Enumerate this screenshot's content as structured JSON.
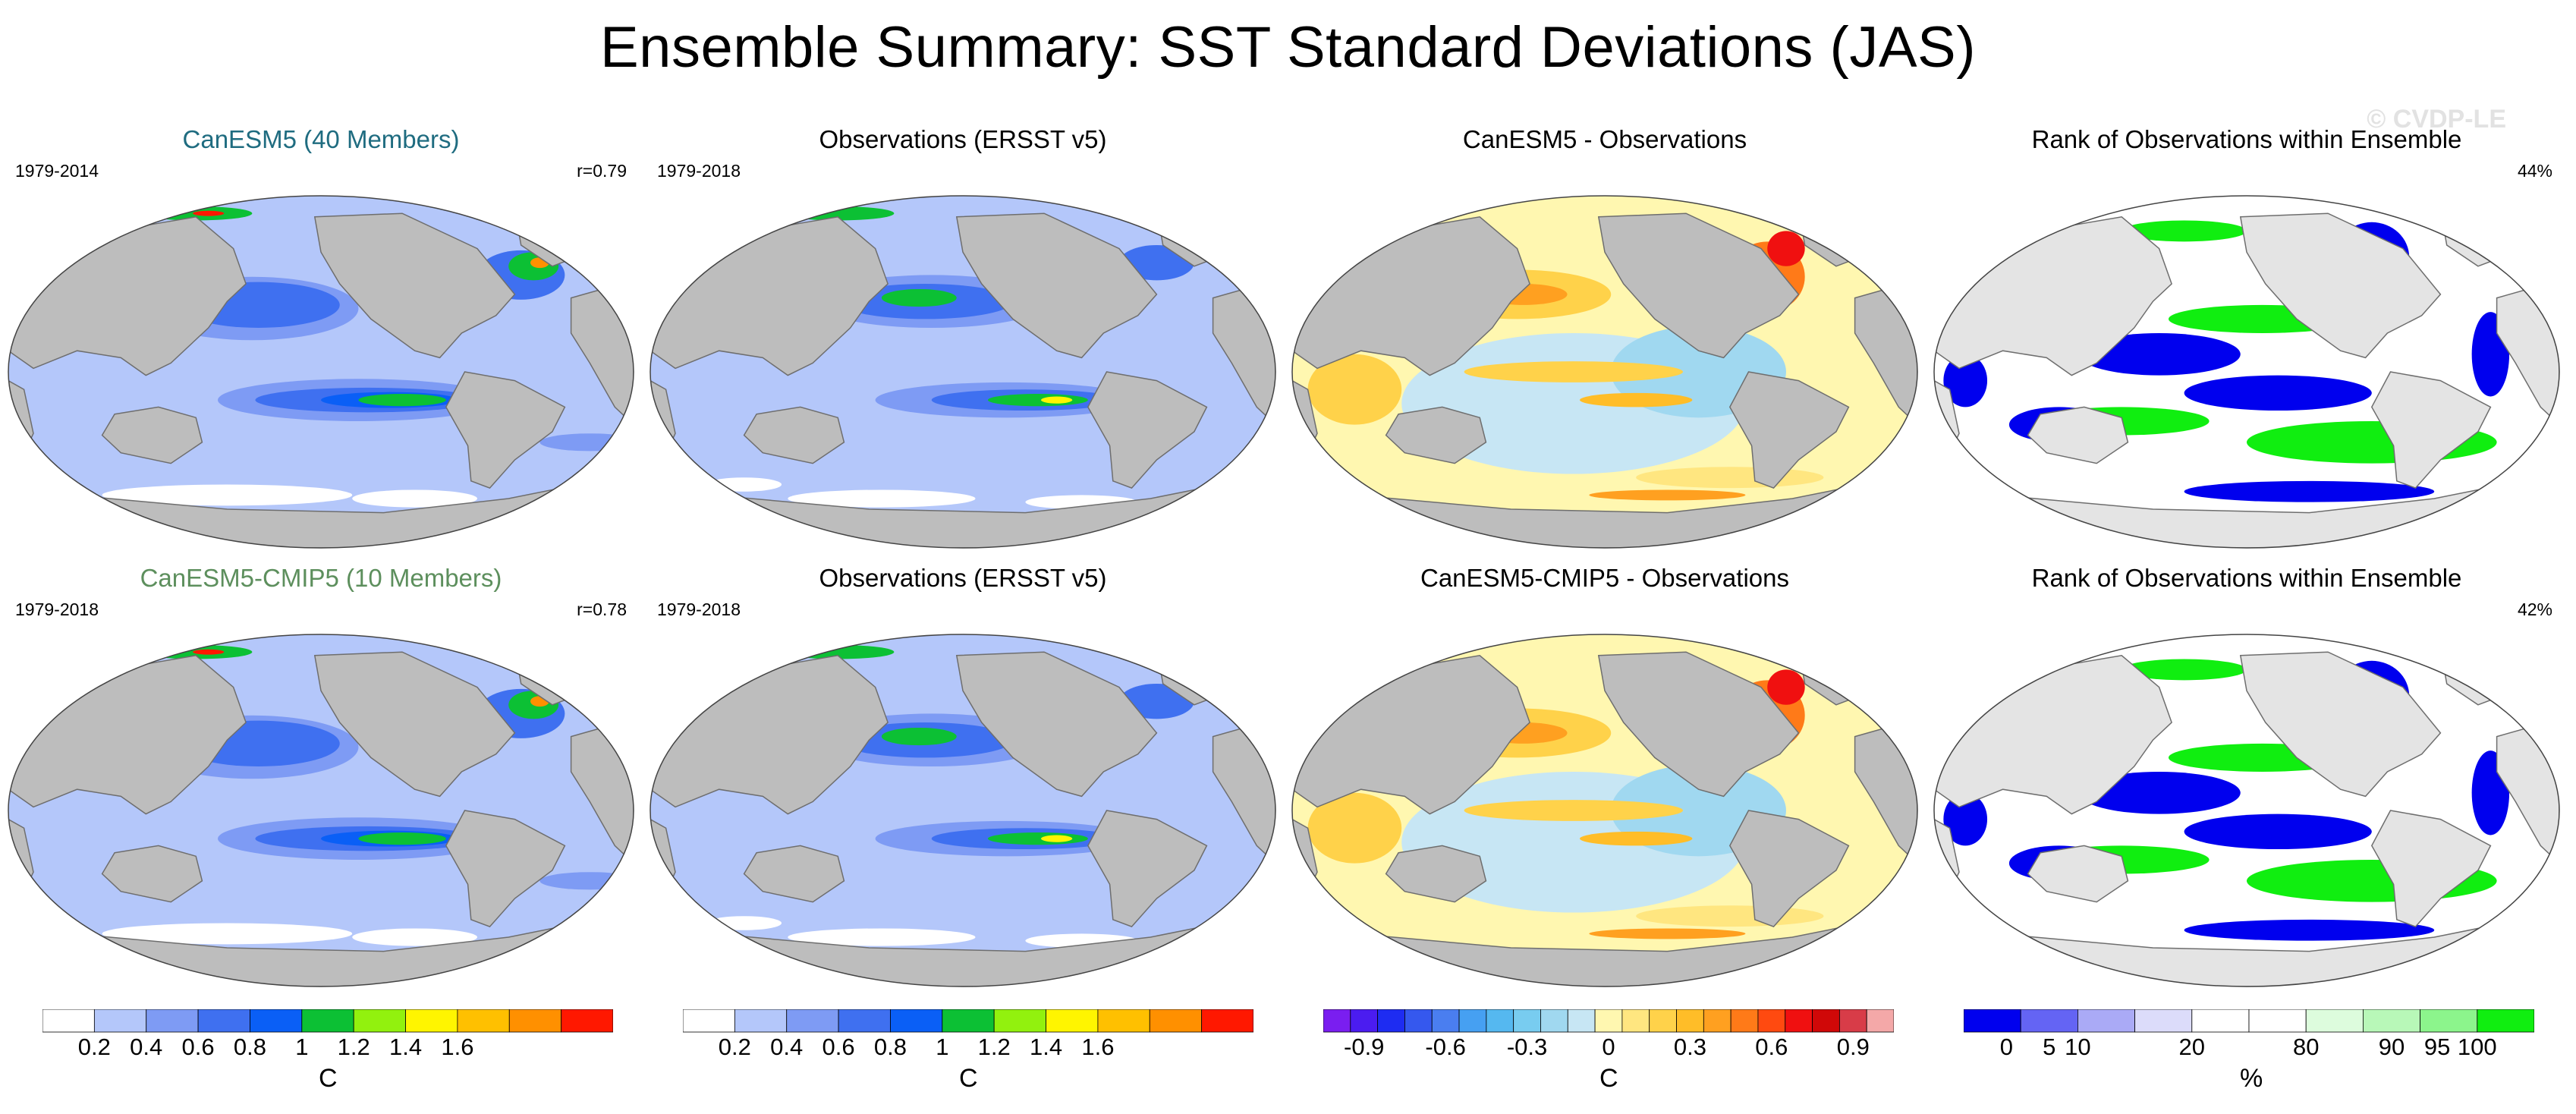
{
  "title": "Ensemble Summary: SST Standard Deviations (JAS)",
  "watermark": "© CVDP-LE",
  "colors": {
    "land": "#bdbdbd",
    "ocean_sea_ice": "#ffffff",
    "canesm5_title": "#1f6c80",
    "cmip5_title": "#5d8f5d"
  },
  "panels": [
    {
      "title": "CanESM5 (40 Members)",
      "title_color": "#1f6c80",
      "left_text": "1979-2014",
      "right_text": "r=0.79",
      "map_type": "std_model"
    },
    {
      "title": "Observations (ERSST v5)",
      "title_color": "#000000",
      "left_text": "1979-2018",
      "right_text": "",
      "map_type": "std_obs"
    },
    {
      "title": "CanESM5 - Observations",
      "title_color": "#000000",
      "left_text": "",
      "right_text": "",
      "map_type": "diff"
    },
    {
      "title": "Rank of Observations within Ensemble",
      "title_color": "#000000",
      "left_text": "",
      "right_text": "44%",
      "map_type": "rank"
    },
    {
      "title": "CanESM5-CMIP5 (10 Members)",
      "title_color": "#5d8f5d",
      "left_text": "1979-2018",
      "right_text": "r=0.78",
      "map_type": "std_model"
    },
    {
      "title": "Observations (ERSST v5)",
      "title_color": "#000000",
      "left_text": "1979-2018",
      "right_text": "",
      "map_type": "std_obs"
    },
    {
      "title": "CanESM5-CMIP5 - Observations",
      "title_color": "#000000",
      "left_text": "",
      "right_text": "",
      "map_type": "diff"
    },
    {
      "title": "Rank of Observations within Ensemble",
      "title_color": "#000000",
      "left_text": "",
      "right_text": "42%",
      "map_type": "rank"
    }
  ],
  "colorbars": [
    {
      "name": "std-colorbar-1",
      "unit": "C",
      "colors": [
        "#ffffff",
        "#b4c7fa",
        "#7e9bf4",
        "#3f70f0",
        "#0a5ff6",
        "#0cc034",
        "#92f10e",
        "#fff500",
        "#ffc000",
        "#ff9000",
        "#ff1800"
      ],
      "labels": [
        "0.2",
        "0.4",
        "0.6",
        "0.8",
        "1",
        "1.2",
        "1.4",
        "1.6"
      ],
      "label_bounds": [
        1,
        2,
        3,
        4,
        5,
        6,
        7,
        8
      ]
    },
    {
      "name": "std-colorbar-2",
      "unit": "C",
      "colors": [
        "#ffffff",
        "#b4c7fa",
        "#7e9bf4",
        "#3f70f0",
        "#0a5ff6",
        "#0cc034",
        "#92f10e",
        "#fff500",
        "#ffc000",
        "#ff9000",
        "#ff1800"
      ],
      "labels": [
        "0.2",
        "0.4",
        "0.6",
        "0.8",
        "1",
        "1.2",
        "1.4",
        "1.6"
      ],
      "label_bounds": [
        1,
        2,
        3,
        4,
        5,
        6,
        7,
        8
      ]
    },
    {
      "name": "diff-colorbar",
      "unit": "C",
      "colors": [
        "#7a1ef0",
        "#4b1cf0",
        "#1e2cf2",
        "#3558ee",
        "#4a7ef0",
        "#46a0f2",
        "#55b8f0",
        "#78ccf0",
        "#a0d8f0",
        "#c7e6f4",
        "#fff7b0",
        "#ffe680",
        "#ffd24a",
        "#ffbd28",
        "#ffa020",
        "#ff7a18",
        "#ff4a10",
        "#f01010",
        "#d00808",
        "#d83c48",
        "#f4a8a8"
      ],
      "labels": [
        "-0.9",
        "-0.6",
        "-0.3",
        "0",
        "0.3",
        "0.6",
        "0.9"
      ],
      "label_bounds": [
        1.5,
        4.5,
        7.5,
        10.5,
        13.5,
        16.5,
        19.5
      ]
    },
    {
      "name": "rank-colorbar",
      "unit": "%",
      "colors": [
        "#0000ee",
        "#6464f4",
        "#aaaaf6",
        "#dcdcfa",
        "#ffffff",
        "#ffffff",
        "#ddfcdd",
        "#b8f8b8",
        "#8cf58c",
        "#10ee10"
      ],
      "labels": [
        "0",
        "5",
        "10",
        "20",
        "80",
        "90",
        "95",
        "100"
      ],
      "label_bounds": [
        0.75,
        1.5,
        2,
        4,
        6,
        7.5,
        8.3,
        9
      ]
    }
  ]
}
